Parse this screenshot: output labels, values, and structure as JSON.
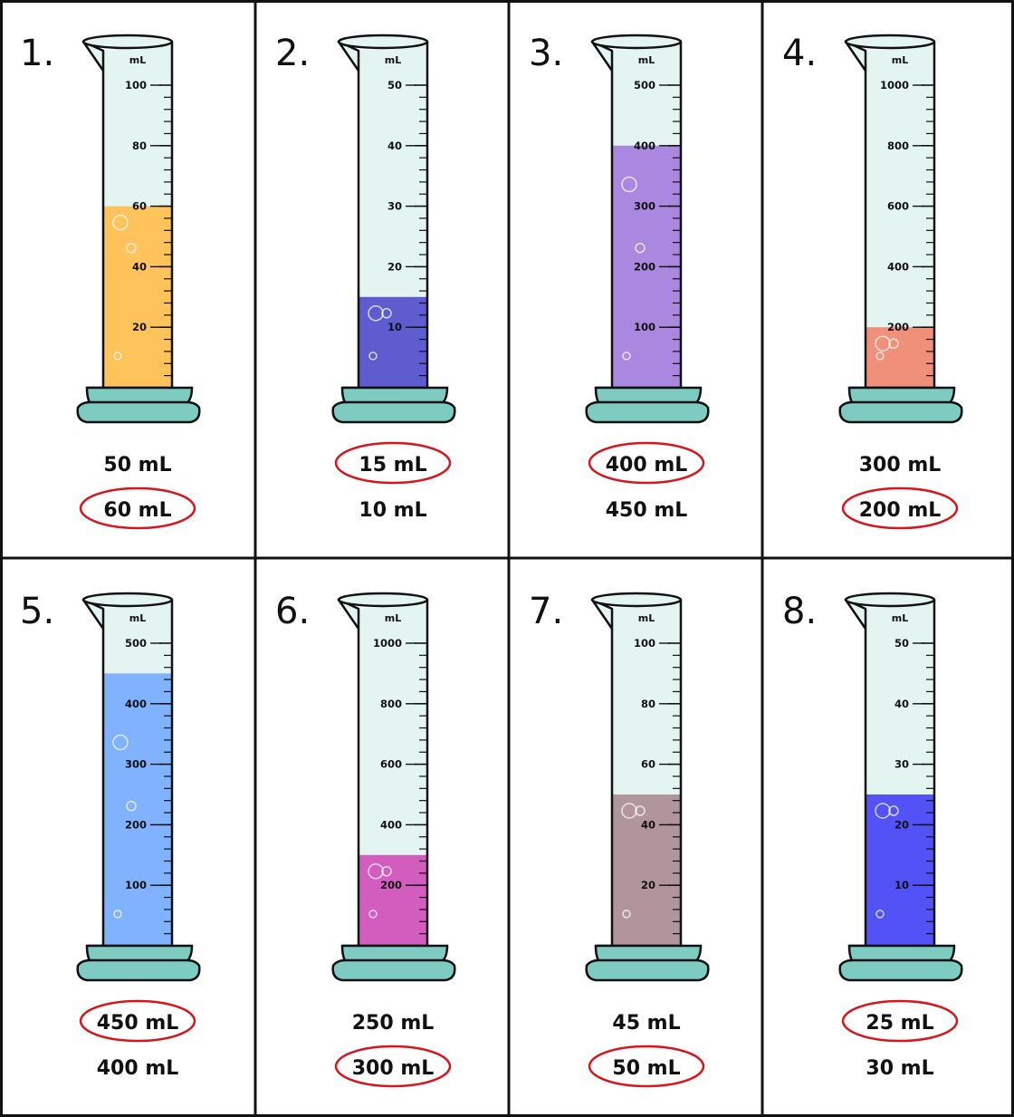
{
  "worksheet": {
    "unit_label": "mL",
    "colors": {
      "tube_glass": "#e4f4f1",
      "tube_outline": "#111111",
      "base": "#7ecbc2",
      "answer_circle": "#d8141d",
      "grid_line": "#111111"
    },
    "cylinders": [
      {
        "number": "1.",
        "tick_labels": [
          "100",
          "80",
          "60",
          "40",
          "20"
        ],
        "max": 100,
        "liquid_value": 60,
        "liquid_color": "#ffc35c",
        "options": [
          "50 mL",
          "60 mL"
        ],
        "correct_index": 1
      },
      {
        "number": "2.",
        "tick_labels": [
          "50",
          "40",
          "30",
          "20",
          "10"
        ],
        "max": 50,
        "liquid_value": 15,
        "liquid_color": "#5f5cd0",
        "options": [
          "15 mL",
          "10 mL"
        ],
        "correct_index": 0
      },
      {
        "number": "3.",
        "tick_labels": [
          "500",
          "400",
          "300",
          "200",
          "100"
        ],
        "max": 500,
        "liquid_value": 400,
        "liquid_color": "#ab88e0",
        "options": [
          "400 mL",
          "450 mL"
        ],
        "correct_index": 0
      },
      {
        "number": "4.",
        "tick_labels": [
          "1000",
          "800",
          "600",
          "400",
          "200"
        ],
        "max": 1000,
        "liquid_value": 200,
        "liquid_color": "#f0907a",
        "options": [
          "300 mL",
          "200 mL"
        ],
        "correct_index": 1
      },
      {
        "number": "5.",
        "tick_labels": [
          "500",
          "400",
          "300",
          "200",
          "100"
        ],
        "max": 500,
        "liquid_value": 450,
        "liquid_color": "#80b2ff",
        "options": [
          "450 mL",
          "400 mL"
        ],
        "correct_index": 0
      },
      {
        "number": "6.",
        "tick_labels": [
          "1000",
          "800",
          "600",
          "400",
          "200"
        ],
        "max": 1000,
        "liquid_value": 300,
        "liquid_color": "#d35cbf",
        "options": [
          "250 mL",
          "300 mL"
        ],
        "correct_index": 1
      },
      {
        "number": "7.",
        "tick_labels": [
          "100",
          "80",
          "60",
          "40",
          "20"
        ],
        "max": 100,
        "liquid_value": 50,
        "liquid_color": "#b0969a",
        "options": [
          "45 mL",
          "50 mL"
        ],
        "correct_index": 1
      },
      {
        "number": "8.",
        "tick_labels": [
          "50",
          "40",
          "30",
          "20",
          "10"
        ],
        "max": 50,
        "liquid_value": 25,
        "liquid_color": "#5252f7",
        "options": [
          "25 mL",
          "30 mL"
        ],
        "correct_index": 0
      }
    ]
  }
}
